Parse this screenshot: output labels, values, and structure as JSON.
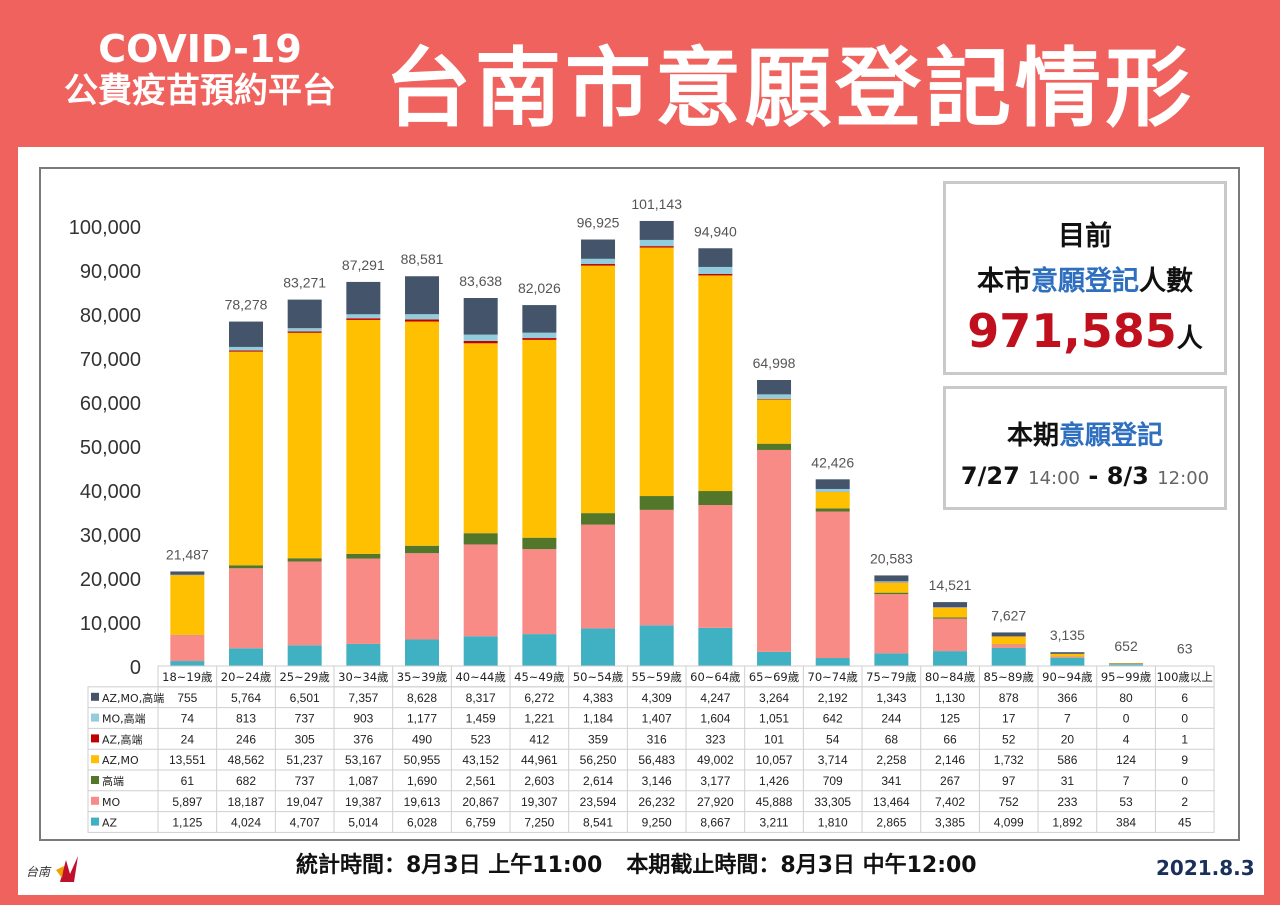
{
  "header": {
    "small_line1": "COVID-19",
    "small_line2": "公費疫苗預約平台",
    "big_title": "台南市意願登記情形"
  },
  "info_total": {
    "line1": "目前",
    "line2_a": "本市",
    "line2_hl": "意願登記",
    "line2_b": "人數",
    "value": "971,585",
    "unit": "人"
  },
  "info_period": {
    "label_a": "本期",
    "label_hl": "意願登記",
    "start": "7/27",
    "start_time": "14:00",
    "sep": " - ",
    "end": "8/3",
    "end_time": "12:00"
  },
  "footer": {
    "stat_time": "統計時間：8月3日 上午11:00",
    "deadline": "本期截止時間：8月3日 中午12:00",
    "date": "2021.8.3"
  },
  "chart_data": {
    "type": "bar",
    "stacked": true,
    "ylim": [
      0,
      100000
    ],
    "ytick_step": 10000,
    "categories": [
      "18~19歲",
      "20~24歲",
      "25~29歲",
      "30~34歲",
      "35~39歲",
      "40~44歲",
      "45~49歲",
      "50~54歲",
      "55~59歲",
      "60~64歲",
      "65~69歲",
      "70~74歲",
      "75~79歲",
      "80~84歲",
      "85~89歲",
      "90~94歲",
      "95~99歲",
      "100歲以上"
    ],
    "totals": [
      "21,487",
      "78,278",
      "83,271",
      "87,291",
      "88,581",
      "83,638",
      "82,026",
      "96,925",
      "101,143",
      "94,940",
      "64,998",
      "42,426",
      "20,583",
      "14,521",
      "7,627",
      "3,135",
      "652",
      "63"
    ],
    "series": [
      {
        "name": "AZ",
        "color": "#3fb1c2",
        "values": [
          1125,
          4024,
          4707,
          5014,
          6028,
          6759,
          7250,
          8541,
          9250,
          8667,
          3211,
          1810,
          2865,
          3385,
          4099,
          1892,
          384,
          45
        ]
      },
      {
        "name": "MO",
        "color": "#f98b87",
        "values": [
          5897,
          18187,
          19047,
          19387,
          19613,
          20867,
          19307,
          23594,
          26232,
          27920,
          45888,
          33305,
          13464,
          7402,
          752,
          233,
          53,
          2
        ]
      },
      {
        "name": "高端",
        "color": "#52772a",
        "values": [
          61,
          682,
          737,
          1087,
          1690,
          2561,
          2603,
          2614,
          3146,
          3177,
          1426,
          709,
          341,
          267,
          97,
          31,
          7,
          0
        ]
      },
      {
        "name": "AZ,MO",
        "color": "#fec000",
        "values": [
          13551,
          48562,
          51237,
          53167,
          50955,
          43152,
          44961,
          56250,
          56483,
          49002,
          10057,
          3714,
          2258,
          2146,
          1732,
          586,
          124,
          9
        ]
      },
      {
        "name": "AZ,高端",
        "color": "#c00000",
        "values": [
          24,
          246,
          305,
          376,
          490,
          523,
          412,
          359,
          316,
          323,
          101,
          54,
          68,
          66,
          52,
          20,
          4,
          1
        ]
      },
      {
        "name": "MO,高端",
        "color": "#93cddd",
        "values": [
          74,
          813,
          737,
          903,
          1177,
          1459,
          1221,
          1184,
          1407,
          1604,
          1051,
          642,
          244,
          125,
          17,
          7,
          0,
          0
        ]
      },
      {
        "name": "AZ,MO,高端",
        "color": "#44546a",
        "values": [
          755,
          5764,
          6501,
          7357,
          8628,
          8317,
          6272,
          4383,
          4309,
          4247,
          3264,
          2192,
          1343,
          1130,
          878,
          366,
          80,
          6
        ]
      }
    ]
  }
}
